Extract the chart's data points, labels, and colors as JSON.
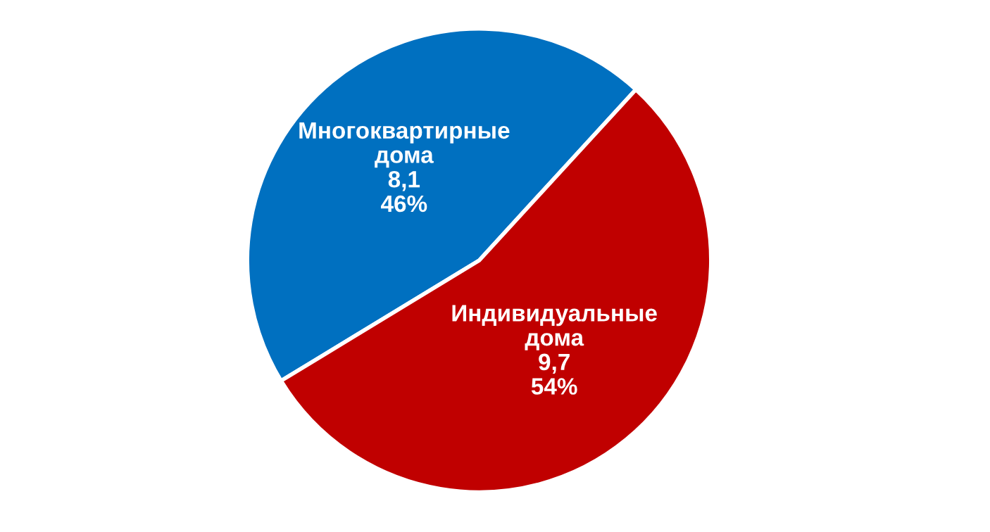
{
  "chart_data": {
    "type": "pie",
    "categories": [
      "Многоквартирные\nдома",
      "Индивидуальные\nдома"
    ],
    "values": [
      8.1,
      9.7
    ],
    "value_labels": [
      "8,1\n46%",
      "9,7\n54%"
    ],
    "colors": [
      "#0070c0",
      "#c00000"
    ]
  }
}
